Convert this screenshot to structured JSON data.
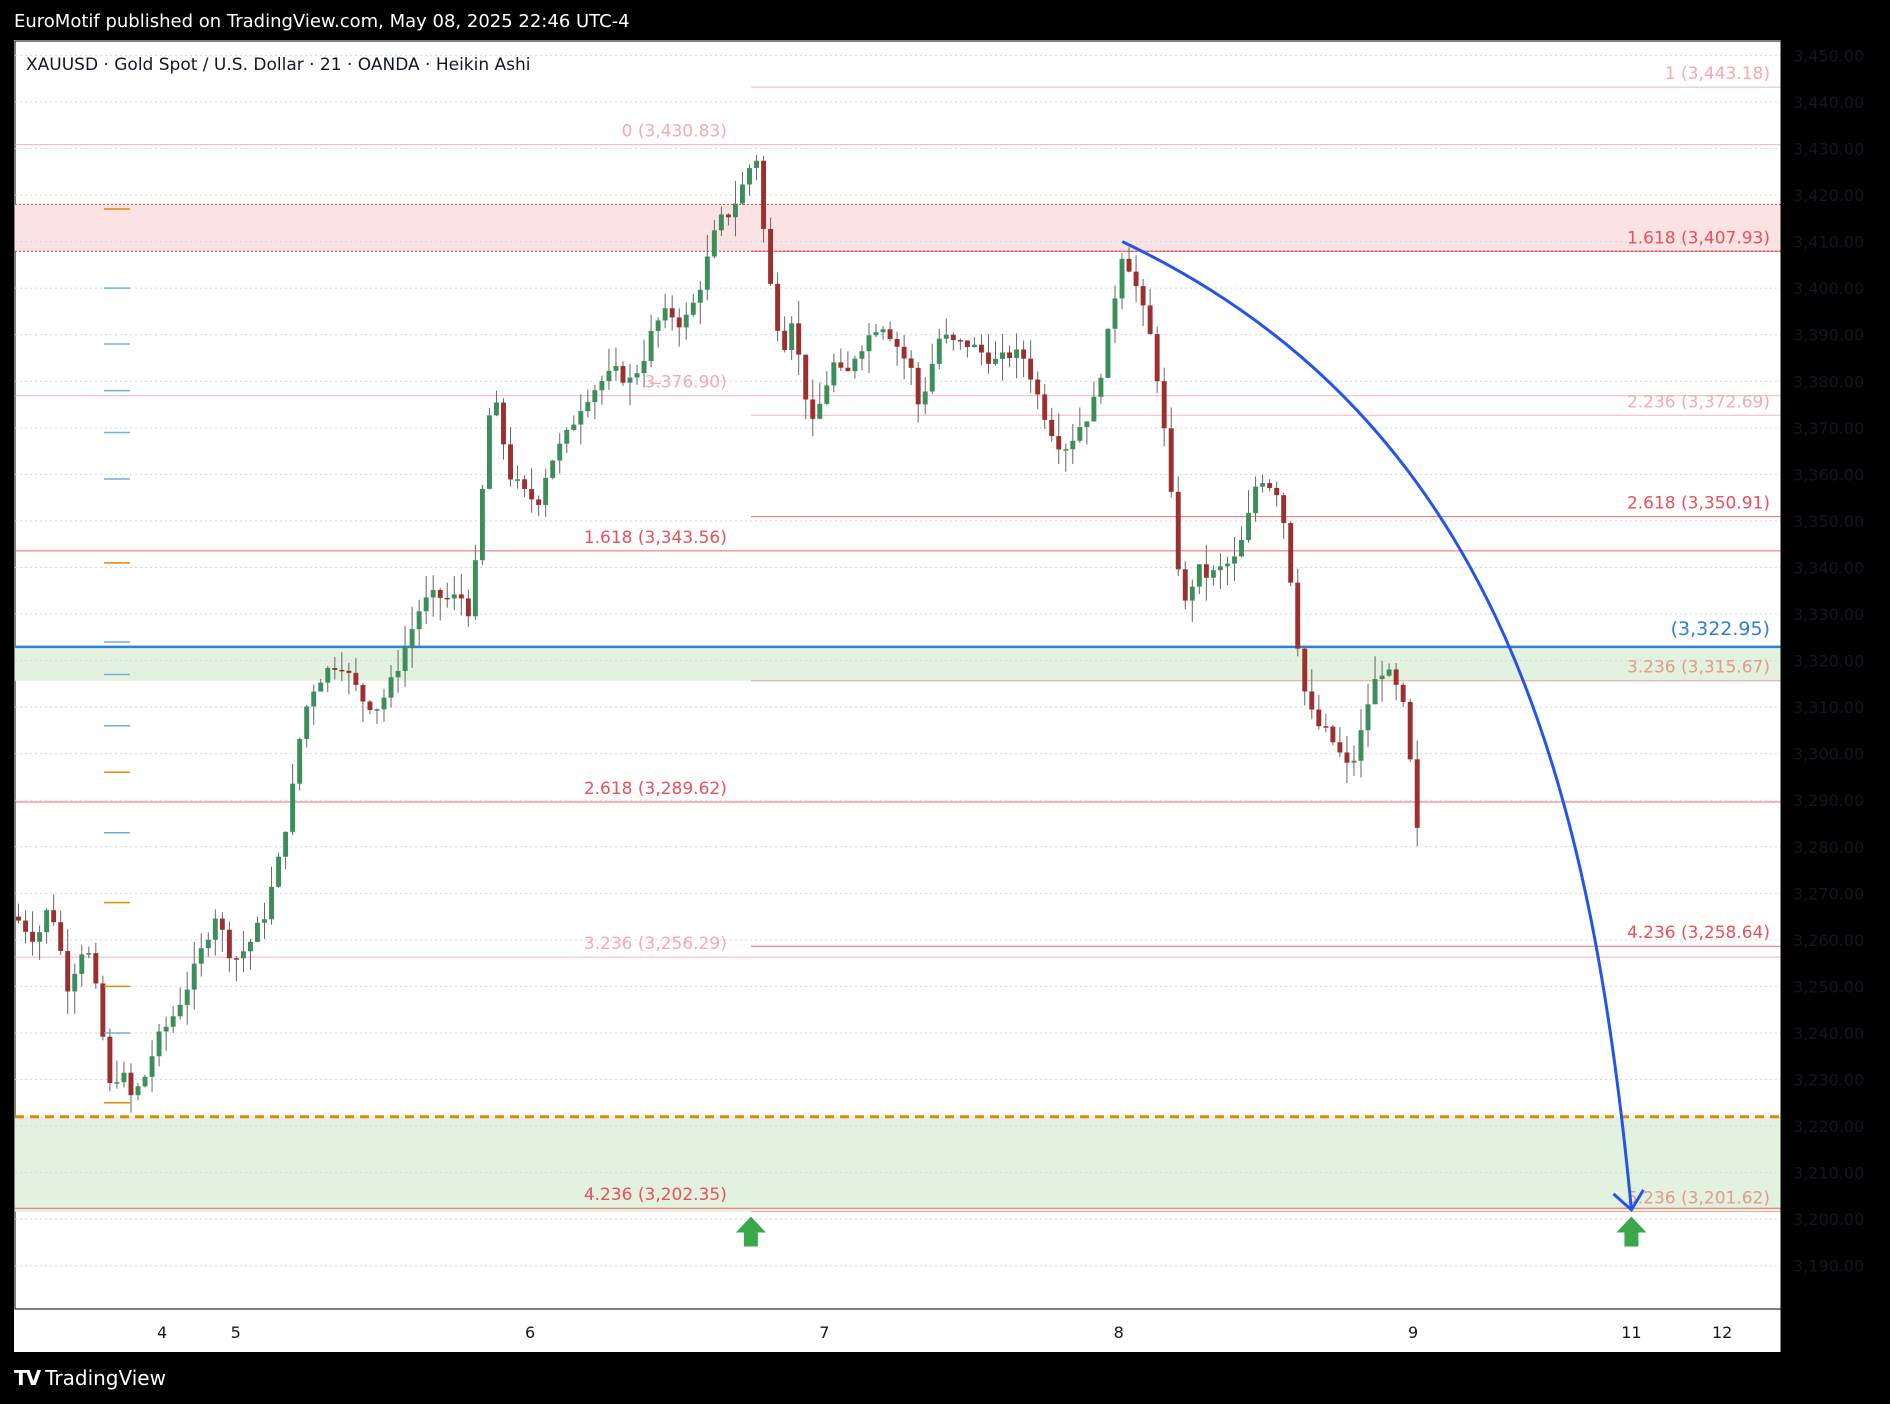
{
  "header": {
    "publisher": "EuroMotif published on TradingView.com, May 08, 2025 22:46 UTC-4"
  },
  "symbol_line": "XAUUSD · Gold Spot / U.S. Dollar · 21 · OANDA · Heikin Ashi",
  "footer": {
    "brand": "TradingView",
    "logo_icon": "tradingview-logo-icon"
  },
  "colors": {
    "up": "#3c8f5a",
    "down": "#9c2f2f",
    "fib_red": "#e8505b",
    "fib_pink": "#f4a9b0",
    "blue_line": "#2f7ed8",
    "arrow_blue": "#2454e8",
    "zone_red": "#fbe3e4",
    "zone_green": "#e3f1df",
    "orange_dash": "#e08a00",
    "green_arrow": "#3aa84a"
  },
  "chart_data": {
    "type": "candlestick",
    "style": "Heikin Ashi",
    "ylim": [
      3180.7,
      3453.1
    ],
    "price_ticks": [
      "3,450.00",
      "3,440.00",
      "3,430.00",
      "3,420.00",
      "3,410.00",
      "3,400.00",
      "3,390.00",
      "3,380.00",
      "3,370.00",
      "3,360.00",
      "3,350.00",
      "3,340.00",
      "3,330.00",
      "3,320.00",
      "3,310.00",
      "3,300.00",
      "3,290.00",
      "3,280.00",
      "3,270.00",
      "3,260.00",
      "3,250.00",
      "3,240.00",
      "3,230.00",
      "3,220.00",
      "3,210.00",
      "3,200.00",
      "3,190.00"
    ],
    "tick_values": [
      3450,
      3440,
      3430,
      3420,
      3410,
      3400,
      3390,
      3380,
      3370,
      3360,
      3350,
      3340,
      3330,
      3320,
      3310,
      3300,
      3290,
      3280,
      3270,
      3260,
      3250,
      3240,
      3230,
      3220,
      3210,
      3200,
      3190
    ],
    "x_labels": [
      {
        "label": "4",
        "t": 0.0833
      },
      {
        "label": "5",
        "t": 0.125
      },
      {
        "label": "6",
        "t": 0.2917
      },
      {
        "label": "7",
        "t": 0.4583
      },
      {
        "label": "8",
        "t": 0.625
      },
      {
        "label": "9",
        "t": 0.7917
      },
      {
        "label": "11",
        "t": 0.9153
      },
      {
        "label": "12",
        "t": 0.9667
      }
    ],
    "price_path": [
      [
        0.0,
        3265
      ],
      [
        0.012,
        3260
      ],
      [
        0.02,
        3268
      ],
      [
        0.03,
        3250
      ],
      [
        0.04,
        3260
      ],
      [
        0.048,
        3245
      ],
      [
        0.053,
        3228
      ],
      [
        0.06,
        3232
      ],
      [
        0.066,
        3226
      ],
      [
        0.073,
        3230
      ],
      [
        0.08,
        3238
      ],
      [
        0.09,
        3244
      ],
      [
        0.1,
        3252
      ],
      [
        0.108,
        3260
      ],
      [
        0.114,
        3266
      ],
      [
        0.12,
        3258
      ],
      [
        0.126,
        3256
      ],
      [
        0.134,
        3260
      ],
      [
        0.142,
        3266
      ],
      [
        0.15,
        3278
      ],
      [
        0.157,
        3292
      ],
      [
        0.163,
        3308
      ],
      [
        0.17,
        3315
      ],
      [
        0.177,
        3318
      ],
      [
        0.184,
        3320
      ],
      [
        0.19,
        3316
      ],
      [
        0.198,
        3311
      ],
      [
        0.206,
        3310
      ],
      [
        0.214,
        3316
      ],
      [
        0.222,
        3324
      ],
      [
        0.23,
        3332
      ],
      [
        0.238,
        3334
      ],
      [
        0.246,
        3333
      ],
      [
        0.252,
        3334
      ],
      [
        0.258,
        3330
      ],
      [
        0.262,
        3345
      ],
      [
        0.266,
        3362
      ],
      [
        0.27,
        3378
      ],
      [
        0.274,
        3372
      ],
      [
        0.28,
        3360
      ],
      [
        0.288,
        3356
      ],
      [
        0.296,
        3354
      ],
      [
        0.302,
        3362
      ],
      [
        0.312,
        3368
      ],
      [
        0.322,
        3376
      ],
      [
        0.332,
        3380
      ],
      [
        0.34,
        3382
      ],
      [
        0.348,
        3380
      ],
      [
        0.355,
        3384
      ],
      [
        0.362,
        3392
      ],
      [
        0.37,
        3395
      ],
      [
        0.378,
        3392
      ],
      [
        0.386,
        3398
      ],
      [
        0.392,
        3406
      ],
      [
        0.398,
        3414
      ],
      [
        0.404,
        3416
      ],
      [
        0.41,
        3420
      ],
      [
        0.416,
        3426
      ],
      [
        0.42,
        3428
      ],
      [
        0.424,
        3412
      ],
      [
        0.428,
        3400
      ],
      [
        0.432,
        3392
      ],
      [
        0.436,
        3388
      ],
      [
        0.44,
        3394
      ],
      [
        0.446,
        3380
      ],
      [
        0.452,
        3370
      ],
      [
        0.458,
        3378
      ],
      [
        0.464,
        3384
      ],
      [
        0.47,
        3380
      ],
      [
        0.476,
        3386
      ],
      [
        0.484,
        3390
      ],
      [
        0.49,
        3393
      ],
      [
        0.496,
        3390
      ],
      [
        0.502,
        3386
      ],
      [
        0.508,
        3382
      ],
      [
        0.512,
        3374
      ],
      [
        0.518,
        3382
      ],
      [
        0.524,
        3390
      ],
      [
        0.532,
        3388
      ],
      [
        0.54,
        3388
      ],
      [
        0.548,
        3386
      ],
      [
        0.556,
        3384
      ],
      [
        0.564,
        3386
      ],
      [
        0.572,
        3385
      ],
      [
        0.578,
        3378
      ],
      [
        0.584,
        3372
      ],
      [
        0.59,
        3367
      ],
      [
        0.596,
        3366
      ],
      [
        0.602,
        3370
      ],
      [
        0.61,
        3374
      ],
      [
        0.616,
        3384
      ],
      [
        0.622,
        3396
      ],
      [
        0.626,
        3408
      ],
      [
        0.632,
        3404
      ],
      [
        0.638,
        3396
      ],
      [
        0.644,
        3388
      ],
      [
        0.648,
        3378
      ],
      [
        0.652,
        3365
      ],
      [
        0.656,
        3350
      ],
      [
        0.66,
        3336
      ],
      [
        0.664,
        3330
      ],
      [
        0.668,
        3340
      ],
      [
        0.676,
        3338
      ],
      [
        0.684,
        3340
      ],
      [
        0.692,
        3342
      ],
      [
        0.698,
        3350
      ],
      [
        0.704,
        3360
      ],
      [
        0.71,
        3358
      ],
      [
        0.716,
        3356
      ],
      [
        0.72,
        3346
      ],
      [
        0.724,
        3332
      ],
      [
        0.728,
        3318
      ],
      [
        0.732,
        3310
      ],
      [
        0.738,
        3306
      ],
      [
        0.744,
        3304
      ],
      [
        0.75,
        3300
      ],
      [
        0.756,
        3296
      ],
      [
        0.762,
        3304
      ],
      [
        0.768,
        3314
      ],
      [
        0.774,
        3318
      ],
      [
        0.78,
        3316
      ],
      [
        0.786,
        3310
      ],
      [
        0.79,
        3298
      ],
      [
        0.794,
        3283
      ],
      [
        0.796,
        3290
      ]
    ],
    "candle_count": 200,
    "candle_x_end": 0.796,
    "fib_labels": [
      {
        "text": "0 (3,430.83)",
        "price": 3430.83,
        "side": "mid",
        "tone": "pink"
      },
      {
        "text": "3.̶376.90)",
        "price": 3376.9,
        "side": "mid",
        "tone": "pink"
      },
      {
        "text": "1.618 (3,343.56)",
        "price": 3343.56,
        "side": "mid",
        "tone": "red"
      },
      {
        "text": "2.618 (3,289.62)",
        "price": 3289.62,
        "side": "mid",
        "tone": "red"
      },
      {
        "text": "3.236 (3,256.29)",
        "price": 3256.29,
        "side": "mid",
        "tone": "pink"
      },
      {
        "text": "4.236 (3,202.35)",
        "price": 3202.35,
        "side": "mid",
        "tone": "red"
      },
      {
        "text": "1 (3,443.18)",
        "price": 3443.18,
        "side": "right",
        "tone": "pink"
      },
      {
        "text": "1.618 (3,407.93)",
        "price": 3407.93,
        "side": "right",
        "tone": "red"
      },
      {
        "text": "2.236 (3,372.69)",
        "price": 3372.69,
        "side": "right",
        "tone": "pink"
      },
      {
        "text": "2.618 (3,350.91)",
        "price": 3350.91,
        "side": "right",
        "tone": "red"
      },
      {
        "text": "3.236 (3,315.67)",
        "price": 3315.67,
        "side": "right",
        "tone": "salmon"
      },
      {
        "text": "4.236 (3,258.64)",
        "price": 3258.64,
        "side": "right",
        "tone": "red"
      },
      {
        "text": "5.236 (3,201.62)",
        "price": 3201.62,
        "side": "right",
        "tone": "salmon"
      }
    ],
    "key_level": {
      "text": "(3,322.95)",
      "price": 3322.95
    },
    "zones": [
      {
        "name": "red-resistance-zone",
        "from": 3407.93,
        "to": 3418.0,
        "color": "zone_red"
      },
      {
        "name": "green-upper-zone",
        "from": 3315.67,
        "to": 3322.95,
        "color": "zone_green"
      },
      {
        "name": "green-lower-zone",
        "from": 3201.62,
        "to": 3222.0,
        "color": "zone_green"
      }
    ],
    "orange_dashed_level": 3222.0,
    "forecast_arrow": {
      "from": [
        0.627,
        3410
      ],
      "to": [
        0.9153,
        3202
      ]
    },
    "green_arrows": [
      {
        "t": 0.4167,
        "price": 3198
      },
      {
        "t": 0.9153,
        "price": 3198
      }
    ]
  }
}
